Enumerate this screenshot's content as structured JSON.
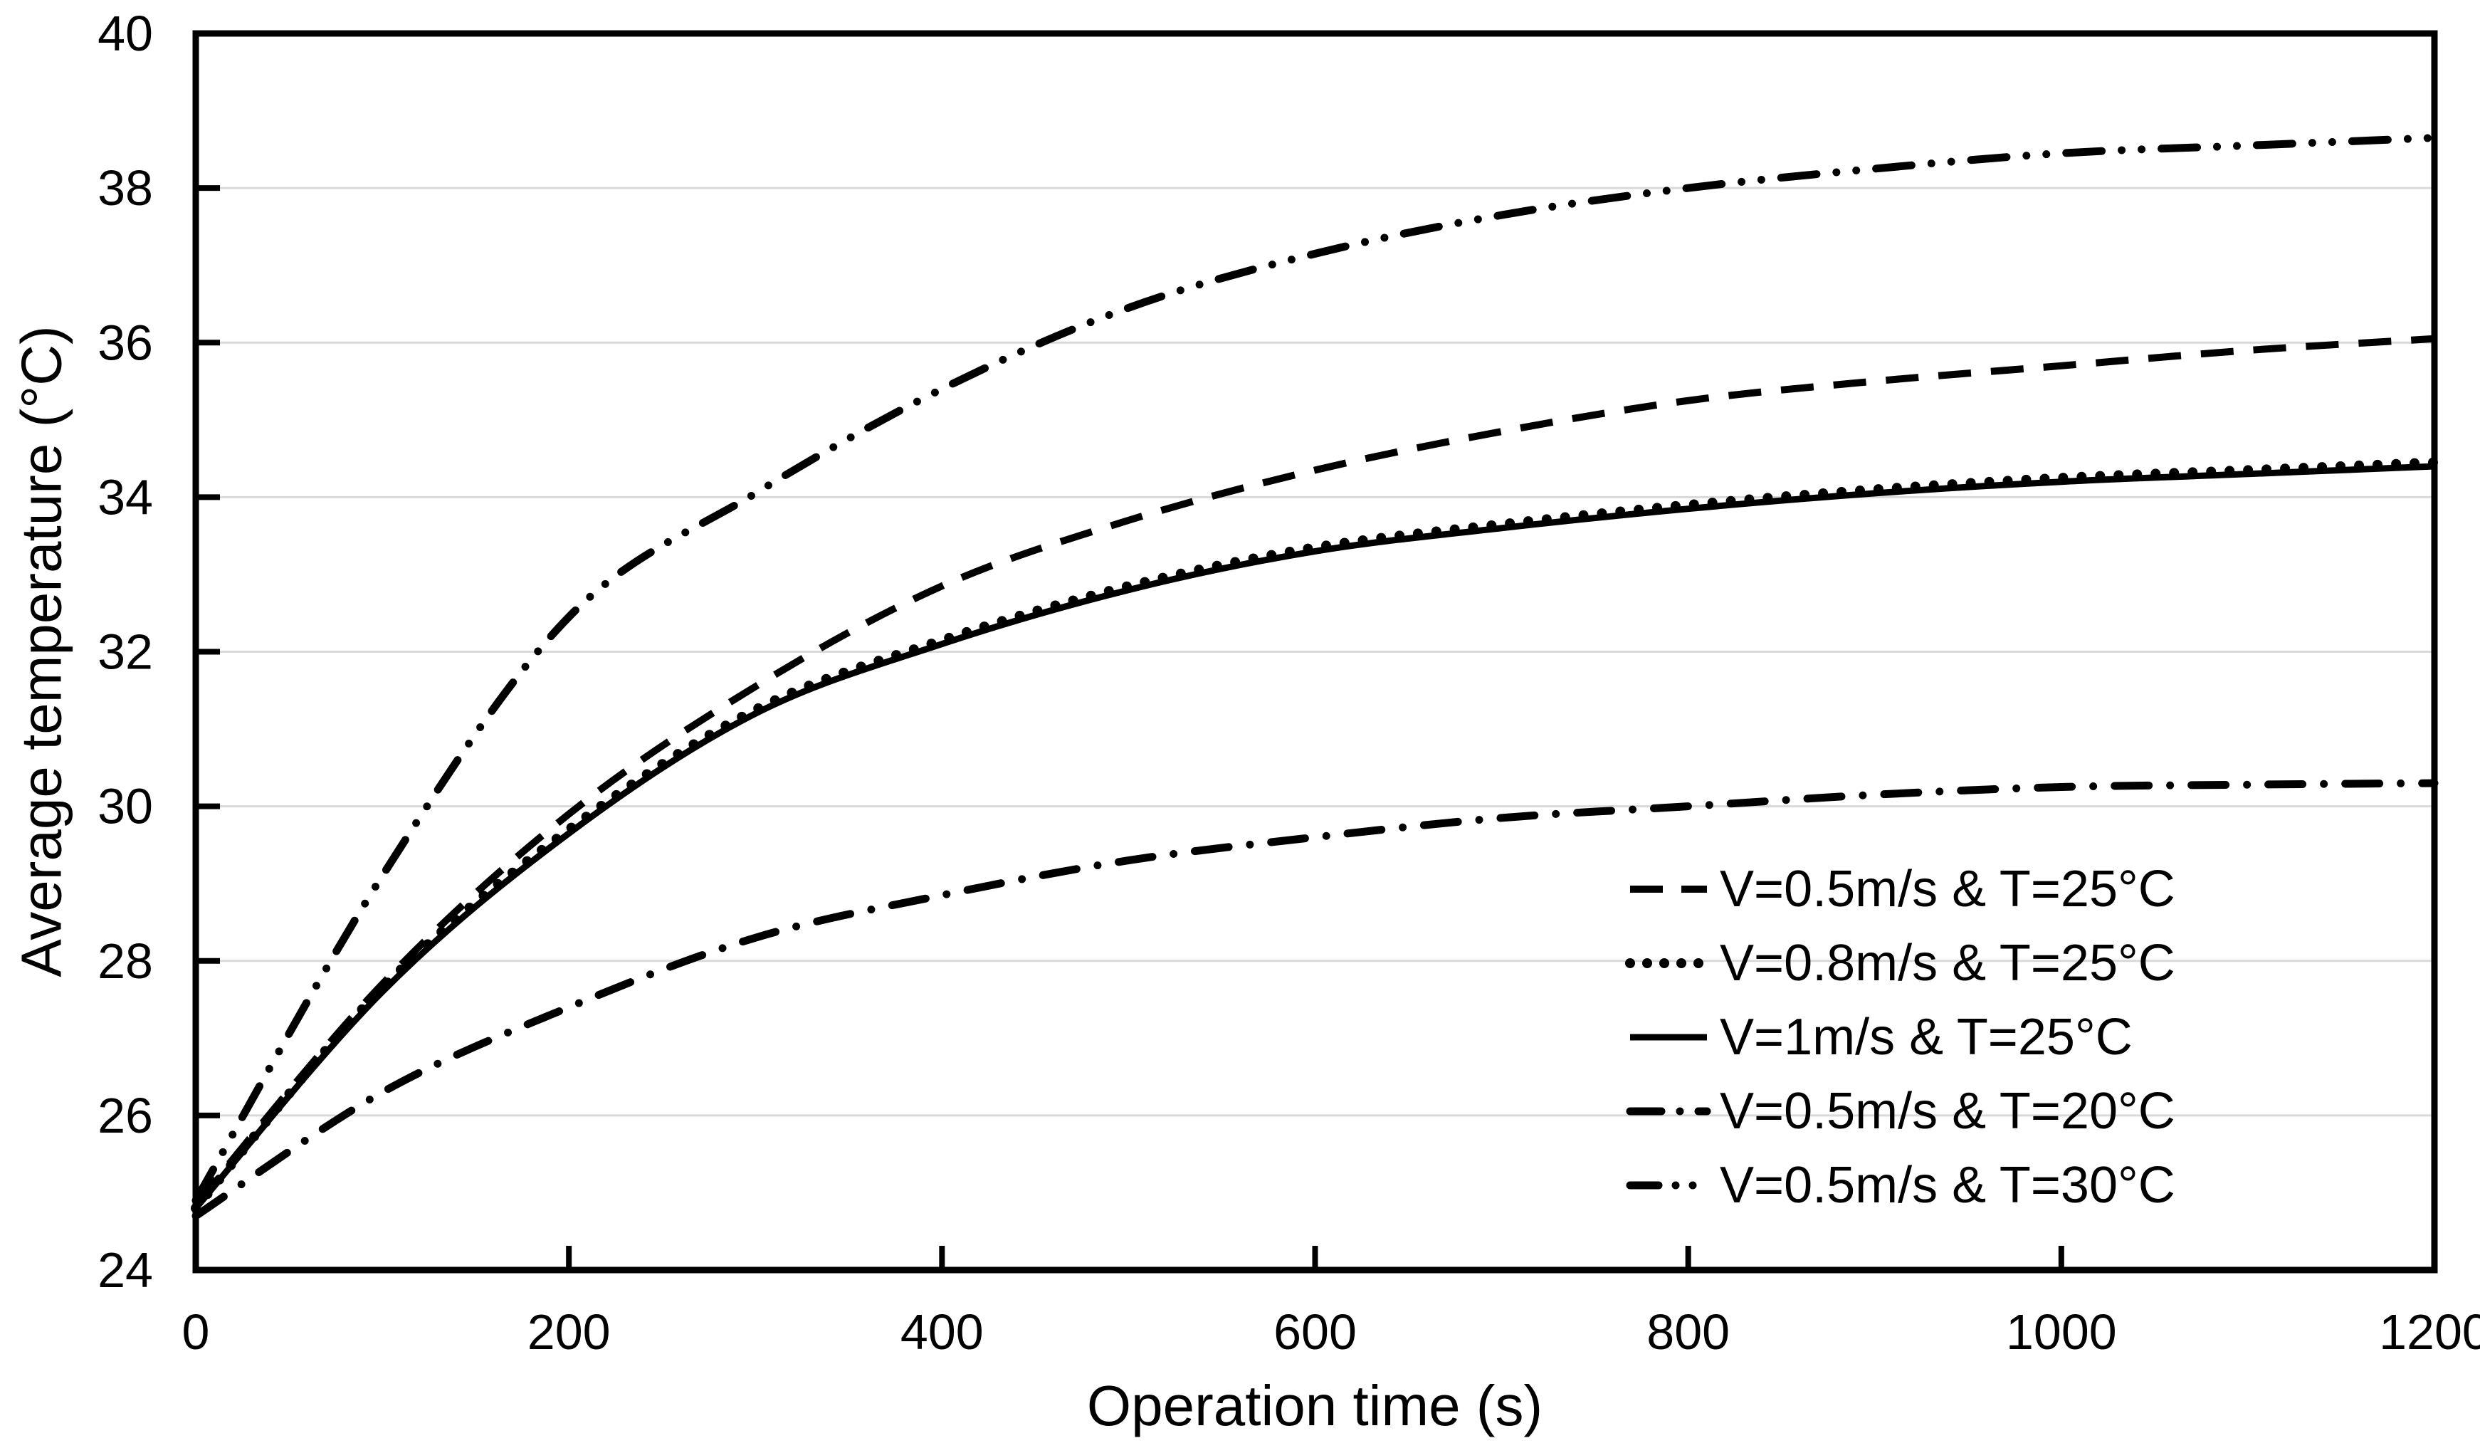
{
  "chart_data": {
    "type": "line",
    "title": "",
    "xlabel": "Operation time (s)",
    "ylabel": "Average temperature (°C)",
    "xlim": [
      0,
      1200
    ],
    "ylim": [
      24,
      40
    ],
    "x_ticks": [
      0,
      200,
      400,
      600,
      800,
      1000,
      1200
    ],
    "y_ticks": [
      24,
      26,
      28,
      30,
      32,
      34,
      36,
      38,
      40
    ],
    "grid": "horizontal-only",
    "gridline_color": "#d9d9d9",
    "axis_color": "#000000",
    "background_color": "#ffffff",
    "legend_position": "inside-right",
    "x": [
      0,
      100,
      200,
      300,
      400,
      500,
      600,
      700,
      800,
      900,
      1000,
      1100,
      1200
    ],
    "series": [
      {
        "name": "V=0.5m/s & T=25°C",
        "style": "dashed",
        "color": "#000000",
        "values": [
          24.85,
          27.7,
          29.9,
          31.55,
          32.85,
          33.7,
          34.35,
          34.85,
          35.25,
          35.5,
          35.7,
          35.9,
          36.05
        ]
      },
      {
        "name": "V=0.8m/s & T=25°C",
        "style": "dotted",
        "color": "#000000",
        "values": [
          24.8,
          27.65,
          29.7,
          31.25,
          32.15,
          32.85,
          33.35,
          33.65,
          33.9,
          34.1,
          34.25,
          34.35,
          34.45
        ]
      },
      {
        "name": "V=1m/s & T=25°C",
        "style": "solid",
        "color": "#000000",
        "values": [
          24.8,
          27.6,
          29.65,
          31.2,
          32.1,
          32.8,
          33.3,
          33.6,
          33.85,
          34.05,
          34.2,
          34.3,
          34.4
        ]
      },
      {
        "name": "V=0.5m/s & T=20°C",
        "style": "dash-dot",
        "color": "#000000",
        "values": [
          24.7,
          26.3,
          27.4,
          28.3,
          28.85,
          29.3,
          29.6,
          29.85,
          30.0,
          30.15,
          30.25,
          30.28,
          30.3
        ]
      },
      {
        "name": "V=0.5m/s & T=30°C",
        "style": "dash-dot-dot",
        "color": "#000000",
        "values": [
          24.9,
          29.1,
          32.45,
          34.05,
          35.4,
          36.45,
          37.15,
          37.65,
          38.0,
          38.25,
          38.45,
          38.55,
          38.65
        ]
      }
    ]
  }
}
